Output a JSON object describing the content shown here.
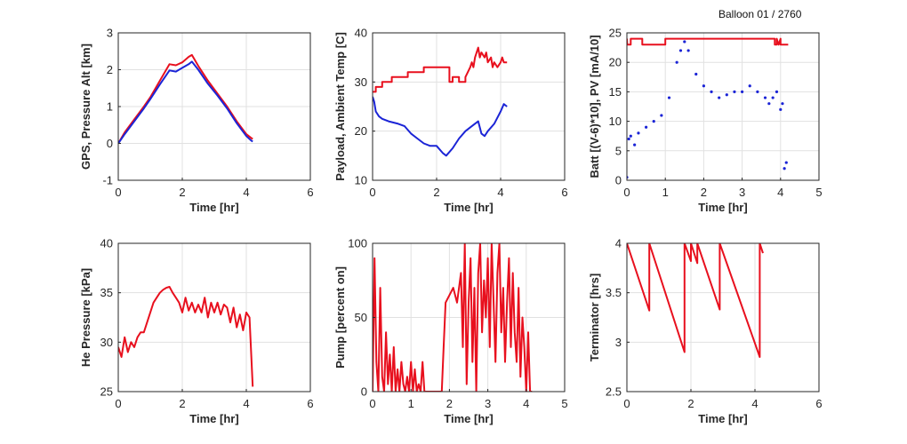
{
  "figure": {
    "title": "Balloon 01 / 2760"
  },
  "colors": {
    "red": "#e8101e",
    "blue": "#1b24d6",
    "grid": "#e1e1e1",
    "axis": "#262626"
  },
  "chart_data": [
    {
      "id": "alt",
      "type": "line",
      "xlabel": "Time [hr]",
      "ylabel": "GPS, Pressure Alt [km]",
      "xlim": [
        0,
        6
      ],
      "ylim": [
        -1,
        3
      ],
      "xticks": [
        0,
        2,
        4,
        6
      ],
      "yticks": [
        -1,
        0,
        1,
        2,
        3
      ],
      "grid": true,
      "series": [
        {
          "color": "red",
          "style": "line",
          "x": [
            0,
            0.2,
            0.5,
            0.8,
            1.0,
            1.3,
            1.6,
            1.8,
            2.0,
            2.2,
            2.3,
            2.5,
            2.8,
            3.1,
            3.4,
            3.7,
            4.0,
            4.15,
            4.2
          ],
          "y": [
            0,
            0.3,
            0.65,
            1.0,
            1.25,
            1.7,
            2.15,
            2.12,
            2.2,
            2.35,
            2.4,
            2.1,
            1.7,
            1.35,
            1.0,
            0.6,
            0.25,
            0.15,
            0.12
          ]
        },
        {
          "color": "blue",
          "style": "line",
          "x": [
            0,
            0.2,
            0.5,
            0.8,
            1.0,
            1.3,
            1.6,
            1.8,
            2.0,
            2.2,
            2.3,
            2.5,
            2.8,
            3.1,
            3.4,
            3.7,
            4.0,
            4.15,
            4.2
          ],
          "y": [
            0,
            0.25,
            0.6,
            0.95,
            1.2,
            1.6,
            1.98,
            1.95,
            2.05,
            2.15,
            2.22,
            2.0,
            1.62,
            1.3,
            0.95,
            0.55,
            0.2,
            0.08,
            0.05
          ]
        }
      ]
    },
    {
      "id": "temp",
      "type": "line",
      "xlabel": "Time [hr]",
      "ylabel": "Payload, Ambient Temp [C]",
      "xlim": [
        0,
        6
      ],
      "ylim": [
        10,
        40
      ],
      "xticks": [
        0,
        2,
        4,
        6
      ],
      "yticks": [
        10,
        20,
        30,
        40
      ],
      "grid": true,
      "series": [
        {
          "color": "red",
          "style": "line",
          "x": [
            0,
            0.1,
            0.1,
            0.3,
            0.3,
            0.6,
            0.6,
            1.1,
            1.1,
            1.6,
            1.6,
            2.4,
            2.4,
            2.5,
            2.5,
            2.7,
            2.7,
            2.9,
            2.9,
            3.05,
            3.1,
            3.15,
            3.2,
            3.3,
            3.35,
            3.4,
            3.5,
            3.55,
            3.6,
            3.7,
            3.75,
            3.8,
            3.9,
            4.0,
            4.05,
            4.1,
            4.2
          ],
          "y": [
            28,
            28,
            29,
            29,
            30,
            30,
            31,
            31,
            32,
            32,
            33,
            33,
            30,
            30,
            31,
            31,
            30,
            30,
            31,
            33,
            34,
            33,
            35,
            37,
            35,
            36,
            35,
            36,
            34,
            35,
            33,
            34,
            33,
            34,
            35,
            34,
            34
          ]
        },
        {
          "color": "blue",
          "style": "line",
          "x": [
            0,
            0.05,
            0.1,
            0.2,
            0.3,
            0.5,
            0.8,
            1.0,
            1.2,
            1.4,
            1.6,
            1.8,
            2.0,
            2.2,
            2.3,
            2.5,
            2.7,
            2.9,
            3.1,
            3.3,
            3.4,
            3.5,
            3.6,
            3.8,
            4.0,
            4.1,
            4.2
          ],
          "y": [
            27,
            26,
            24,
            23,
            22.5,
            22,
            21.5,
            21,
            19.5,
            18.5,
            17.5,
            17,
            17,
            15.5,
            15,
            16.5,
            18.5,
            20,
            21,
            22,
            19.5,
            19,
            20,
            21.5,
            24,
            25.5,
            25
          ]
        }
      ]
    },
    {
      "id": "batt",
      "type": "line",
      "xlabel": "Time [hr]",
      "ylabel": "Batt [(V-6)*10], PV [mA/10]",
      "xlim": [
        0,
        5
      ],
      "ylim": [
        0,
        25
      ],
      "xticks": [
        0,
        1,
        2,
        3,
        4,
        5
      ],
      "yticks": [
        0,
        5,
        10,
        15,
        20,
        25
      ],
      "grid": true,
      "series": [
        {
          "color": "red",
          "style": "line",
          "x": [
            0,
            0.01,
            0.05,
            0.1,
            0.1,
            0.4,
            0.4,
            1.0,
            1.0,
            1.1,
            1.1,
            3.85,
            3.85,
            3.9,
            3.9,
            3.95,
            4.0,
            4.0,
            4.2
          ],
          "y": [
            24,
            23,
            23,
            23,
            24,
            24,
            23,
            23,
            24,
            24,
            24,
            24,
            23,
            23,
            24,
            23,
            24,
            23,
            23
          ]
        },
        {
          "color": "blue",
          "style": "points",
          "x": [
            0,
            0.05,
            0.1,
            0.2,
            0.3,
            0.5,
            0.7,
            0.9,
            1.1,
            1.3,
            1.4,
            1.5,
            1.6,
            1.8,
            2.0,
            2.2,
            2.4,
            2.6,
            2.8,
            3.0,
            3.2,
            3.4,
            3.6,
            3.7,
            3.8,
            3.9,
            4.0,
            4.05,
            4.1,
            4.15
          ],
          "y": [
            0.5,
            7,
            7.5,
            6,
            8,
            9,
            10,
            11,
            14,
            20,
            22,
            23.5,
            22,
            18,
            16,
            15,
            14,
            14.5,
            15,
            15,
            16,
            15,
            14,
            13,
            14,
            15,
            12,
            13,
            2,
            3
          ]
        }
      ]
    },
    {
      "id": "he",
      "type": "line",
      "xlabel": "Time [hr]",
      "ylabel": "He Pressure [kPa]",
      "xlim": [
        0,
        6
      ],
      "ylim": [
        25,
        40
      ],
      "xticks": [
        0,
        2,
        4,
        6
      ],
      "yticks": [
        25,
        30,
        35,
        40
      ],
      "grid": true,
      "series": [
        {
          "color": "red",
          "style": "line",
          "x": [
            0,
            0.1,
            0.2,
            0.3,
            0.4,
            0.5,
            0.6,
            0.7,
            0.8,
            0.9,
            1.0,
            1.1,
            1.2,
            1.3,
            1.4,
            1.5,
            1.6,
            1.7,
            1.8,
            1.9,
            2.0,
            2.1,
            2.2,
            2.3,
            2.4,
            2.5,
            2.6,
            2.7,
            2.8,
            2.9,
            3.0,
            3.1,
            3.2,
            3.3,
            3.4,
            3.5,
            3.6,
            3.7,
            3.8,
            3.9,
            4.0,
            4.1,
            4.2
          ],
          "y": [
            29.5,
            28.5,
            30.5,
            29,
            30,
            29.5,
            30.5,
            31,
            31,
            32,
            33,
            34,
            34.5,
            35,
            35.3,
            35.5,
            35.6,
            35,
            34.5,
            34,
            33,
            34.5,
            33.2,
            34,
            33,
            33.8,
            33,
            34.5,
            32.5,
            34,
            33,
            34,
            32.8,
            33.8,
            33.5,
            32,
            33.5,
            31.5,
            32.8,
            31.2,
            33,
            32.5,
            25.5
          ]
        }
      ]
    },
    {
      "id": "pump",
      "type": "line",
      "xlabel": "Time [hr]",
      "ylabel": "Pump [percent on]",
      "xlim": [
        0,
        5
      ],
      "ylim": [
        0,
        100
      ],
      "xticks": [
        0,
        1,
        2,
        3,
        4,
        5
      ],
      "yticks": [
        0,
        50,
        100
      ],
      "grid": true,
      "series": [
        {
          "color": "red",
          "style": "line",
          "x": [
            0,
            0.05,
            0.1,
            0.15,
            0.2,
            0.25,
            0.3,
            0.35,
            0.4,
            0.45,
            0.5,
            0.55,
            0.6,
            0.65,
            0.7,
            0.75,
            0.8,
            0.85,
            0.9,
            0.95,
            1.0,
            1.05,
            1.1,
            1.15,
            1.2,
            1.25,
            1.3,
            1.35,
            1.4,
            1.45,
            1.5,
            1.6,
            1.7,
            1.8,
            1.85,
            1.9,
            2.0,
            2.1,
            2.2,
            2.3,
            2.35,
            2.4,
            2.45,
            2.5,
            2.55,
            2.6,
            2.65,
            2.7,
            2.75,
            2.8,
            2.85,
            2.9,
            2.95,
            3.0,
            3.05,
            3.1,
            3.15,
            3.2,
            3.25,
            3.3,
            3.35,
            3.4,
            3.45,
            3.5,
            3.55,
            3.6,
            3.65,
            3.7,
            3.75,
            3.8,
            3.85,
            3.9,
            3.95,
            4.0,
            4.05,
            4.1,
            4.15
          ],
          "y": [
            0,
            90,
            20,
            0,
            70,
            10,
            0,
            40,
            5,
            25,
            0,
            30,
            0,
            15,
            0,
            20,
            5,
            0,
            10,
            0,
            20,
            0,
            15,
            0,
            5,
            0,
            20,
            0,
            0,
            0,
            0,
            0,
            0,
            0,
            30,
            60,
            65,
            70,
            60,
            80,
            30,
            100,
            5,
            60,
            90,
            20,
            70,
            0,
            80,
            100,
            40,
            75,
            50,
            90,
            30,
            100,
            60,
            20,
            80,
            100,
            40,
            70,
            20,
            60,
            90,
            30,
            80,
            40,
            20,
            70,
            10,
            50,
            30,
            0,
            40,
            0,
            0
          ]
        }
      ]
    },
    {
      "id": "term",
      "type": "line",
      "xlabel": "Time [hr]",
      "ylabel": "Terminator [hrs]",
      "xlim": [
        0,
        6
      ],
      "ylim": [
        2.5,
        4
      ],
      "xticks": [
        0,
        2,
        4,
        6
      ],
      "yticks": [
        2.5,
        3,
        3.5,
        4
      ],
      "grid": true,
      "series": [
        {
          "color": "red",
          "style": "line",
          "x": [
            0,
            0.7,
            0.7,
            1.8,
            1.8,
            2.0,
            2.0,
            2.2,
            2.2,
            2.9,
            2.9,
            4.15,
            4.15,
            4.25
          ],
          "y": [
            4,
            3.32,
            4,
            2.9,
            4,
            3.82,
            4,
            3.8,
            4,
            3.33,
            4,
            2.85,
            4,
            3.9
          ]
        }
      ]
    }
  ]
}
